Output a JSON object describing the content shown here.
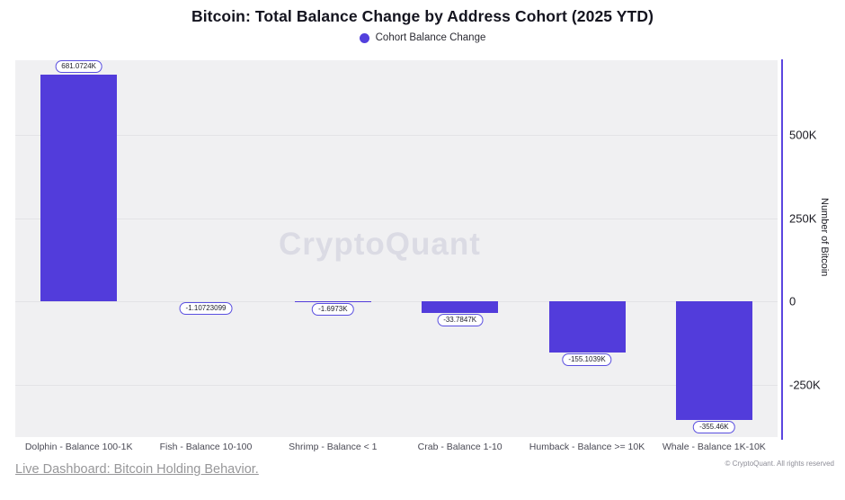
{
  "title": "Bitcoin: Total Balance Change by Address Cohort (2025 YTD)",
  "watermark": "CryptoQuant",
  "chart_data": {
    "type": "bar",
    "title": "Bitcoin: Total Balance Change by Address Cohort (2025 YTD)",
    "legend": "Cohort Balance Change",
    "legend_position": "top",
    "categories": [
      "Dolphin - Balance 100-1K",
      "Fish - Balance 10-100",
      "Shrimp - Balance < 1",
      "Crab - Balance 1-10",
      "Humback - Balance >= 10K",
      "Whale - Balance 1K-10K"
    ],
    "values": [
      681072.4,
      -1.10723099,
      -1697.3,
      -33784.7,
      -155103.9,
      -355460
    ],
    "value_labels": [
      "681.0724K",
      "-1.10723099",
      "-1.6973K",
      "-33.7847K",
      "-155.1039K",
      "-355.46K"
    ],
    "xlabel": "",
    "ylabel": "Number of Bitcoin",
    "yticks": [
      {
        "label": "500K",
        "value": 500000
      },
      {
        "label": "250K",
        "value": 250000
      },
      {
        "label": "0",
        "value": 0
      },
      {
        "label": "-250K",
        "value": -250000
      }
    ],
    "ylim": [
      -408000,
      724000
    ],
    "grid": "horizontal",
    "bar_color": "#523cdb",
    "axis_color": "#5b45e0"
  },
  "footer": {
    "link_text": "Live Dashboard: Bitcoin Holding Behavior.",
    "copyright": "© CryptoQuant. All rights reserved"
  }
}
